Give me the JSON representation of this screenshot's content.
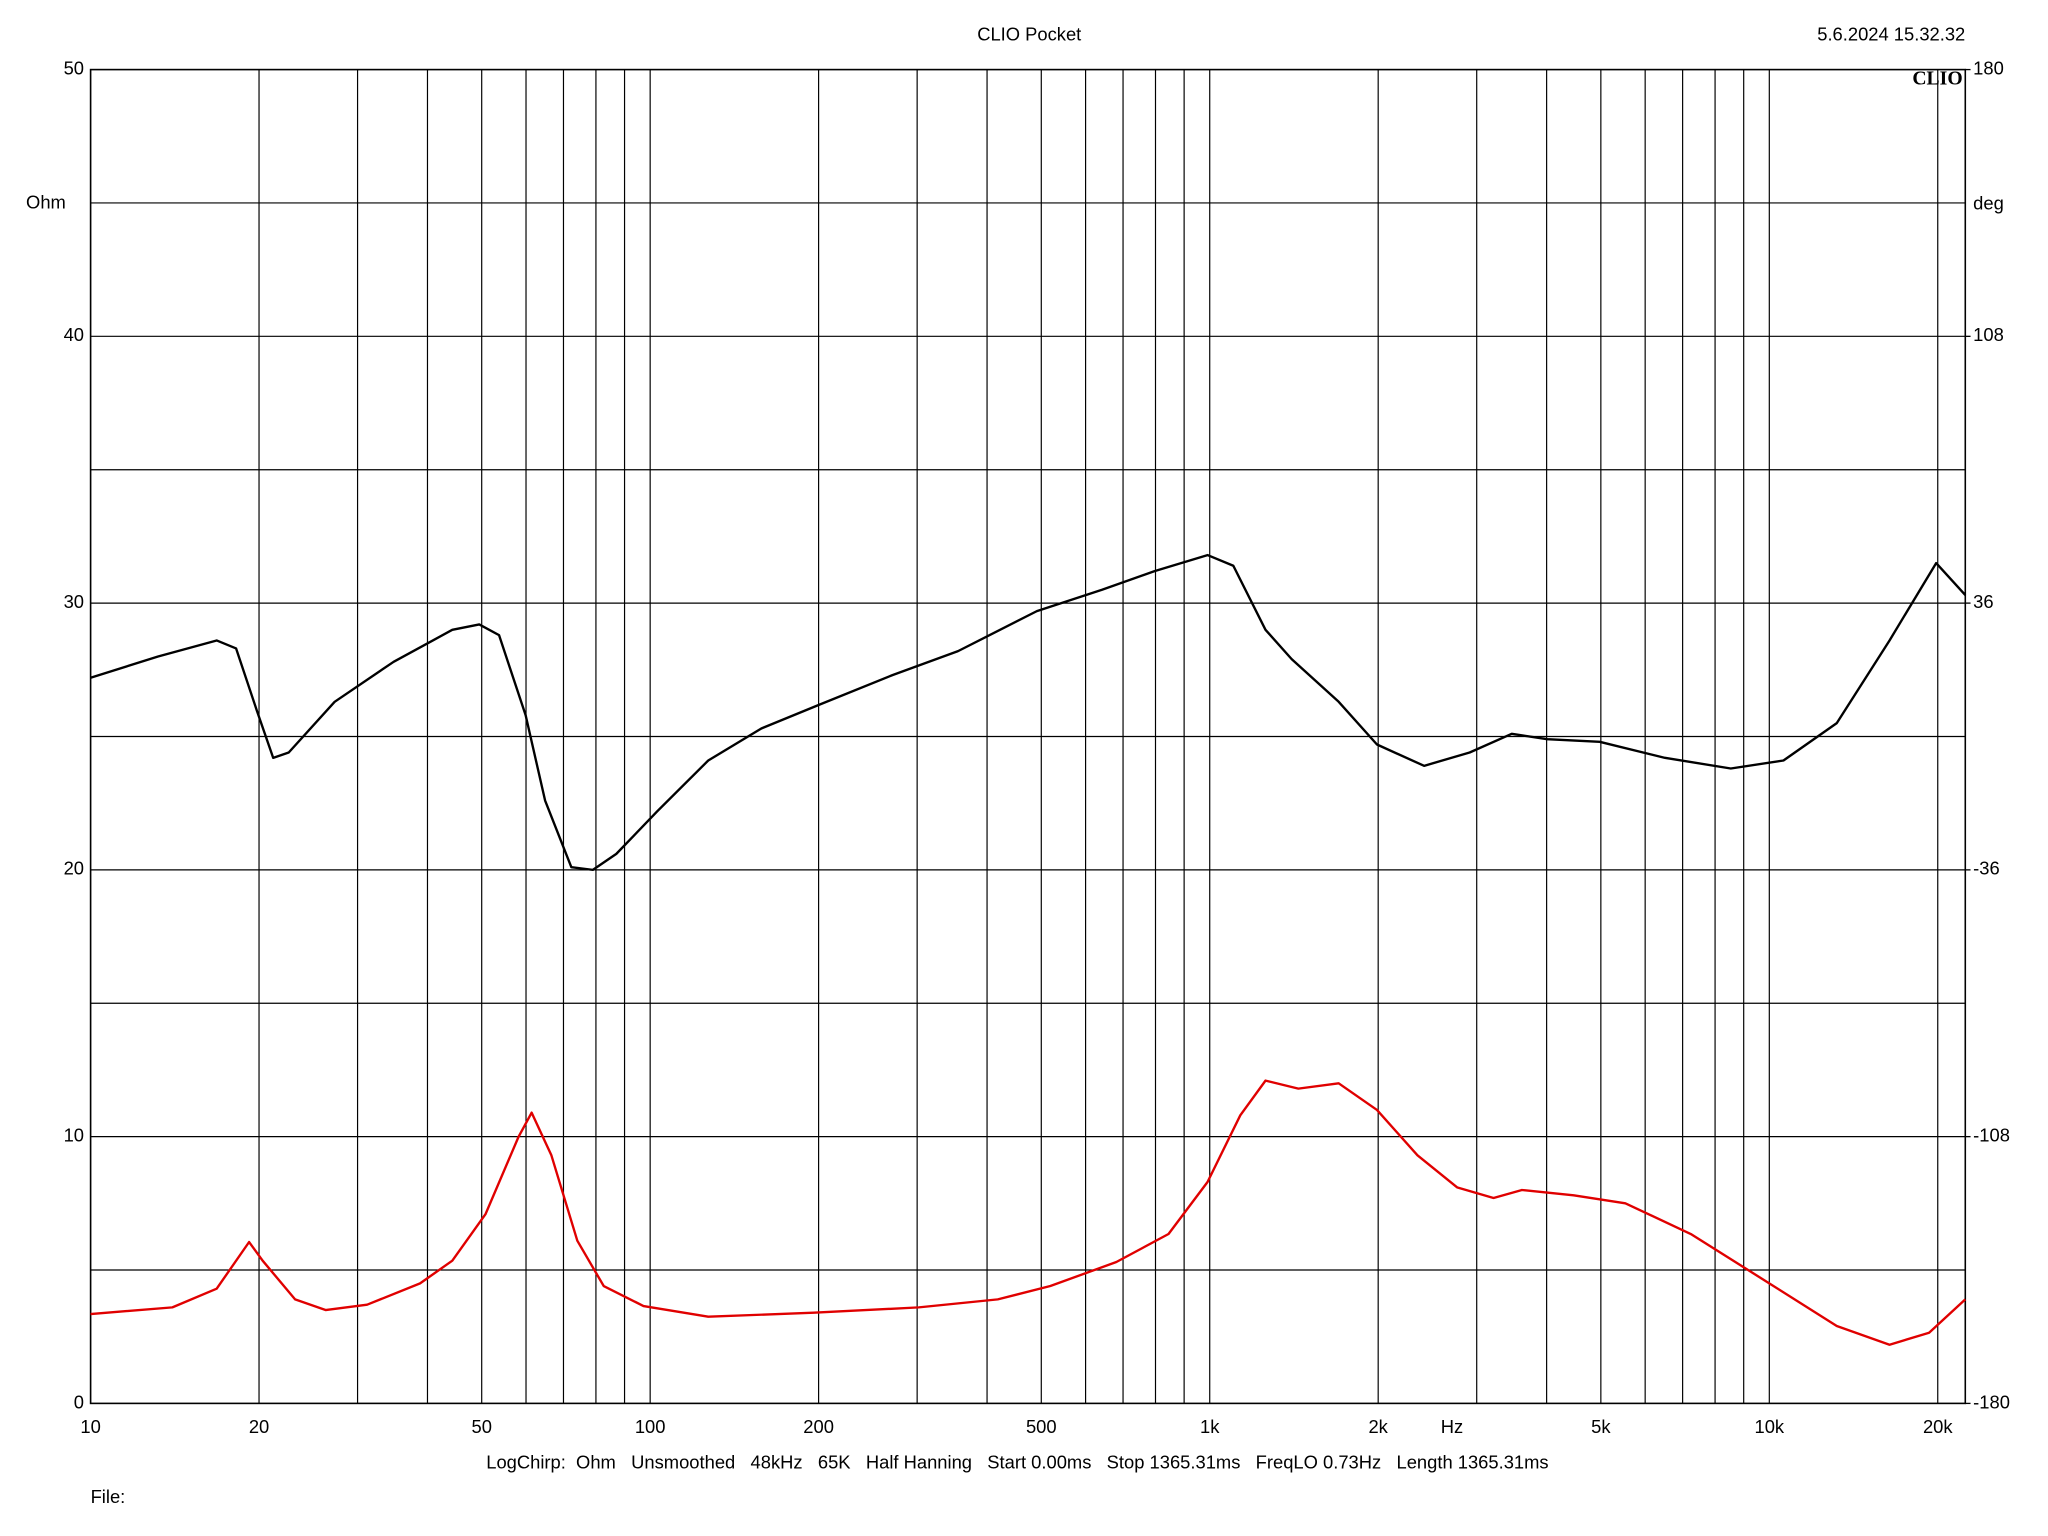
{
  "chart_data": {
    "type": "line",
    "title": "CLIO Pocket",
    "timestamp": "5.6.2024 15.32.32",
    "logo": "CLIO",
    "y_label": "Ohm",
    "y2_label": "deg",
    "x_label": "Hz",
    "footer": "LogChirp:  Ohm   Unsmoothed   48kHz   65K   Half Hanning   Start 0.00ms   Stop 1365.31ms   FreqLO 0.73Hz   Length 1365.31ms",
    "file_label": "File:",
    "xlog": true,
    "xlim": [
      10,
      22400
    ],
    "xticks": [
      10,
      20,
      50,
      100,
      200,
      500,
      {
        "value": 1000,
        "label": "1k"
      },
      {
        "value": 2000,
        "label": "2k"
      },
      {
        "value": 5000,
        "label": "5k"
      },
      {
        "value": 10000,
        "label": "10k"
      },
      {
        "value": 20000,
        "label": "20k"
      }
    ],
    "xgrid": [
      30,
      40,
      60,
      70,
      80,
      90,
      300,
      400,
      600,
      700,
      800,
      900,
      3000,
      4000,
      6000,
      7000,
      8000,
      9000
    ],
    "ylim": [
      0,
      50
    ],
    "yticks": [
      0,
      10,
      20,
      30,
      40,
      50
    ],
    "ygrid": [
      5,
      15,
      25,
      35,
      45
    ],
    "y2lim": [
      -180,
      180
    ],
    "y2ticks": [
      -180,
      -108,
      -36,
      36,
      108,
      180
    ],
    "grid": true,
    "series": [
      {
        "color": "#000000",
        "x": [
          10,
          13.2,
          16.8,
          18.2,
          19.8,
          21.2,
          22.6,
          27.3,
          34.8,
          40.9,
          44.3,
          49.5,
          53.7,
          59.9,
          64.9,
          72.3,
          79,
          87,
          103,
          127,
          158,
          201,
          271,
          355,
          491,
          642,
          797,
          991,
          1102,
          1258,
          1401,
          1700,
          1990,
          2416,
          2914,
          3465,
          4011,
          4976,
          6509,
          8535,
          10600,
          13200,
          16400,
          19870,
          22400
        ],
        "values": [
          27.2,
          28.0,
          28.6,
          28.3,
          26.0,
          24.2,
          24.4,
          26.3,
          27.8,
          28.6,
          29.0,
          29.2,
          28.8,
          25.8,
          22.6,
          20.1,
          20.0,
          20.6,
          22.2,
          24.1,
          25.3,
          26.2,
          27.3,
          28.2,
          29.7,
          30.5,
          31.2,
          31.8,
          31.4,
          29.0,
          27.9,
          26.3,
          24.7,
          23.9,
          24.4,
          25.1,
          24.9,
          24.8,
          24.2,
          23.8,
          24.1,
          25.5,
          28.6,
          31.5,
          30.3
        ]
      },
      {
        "color": "#e00000",
        "x": [
          10,
          14,
          16.8,
          19.2,
          20.3,
          23.2,
          26.3,
          31.2,
          38.8,
          44.3,
          50.8,
          58.2,
          61.4,
          66.6,
          74.1,
          82.6,
          97.3,
          127,
          196,
          302,
          418,
          519,
          681,
          844,
          991,
          1134,
          1258,
          1440,
          1700,
          1990,
          2351,
          2767,
          3215,
          3614,
          4470,
          5530,
          7240,
          9490,
          13200,
          16400,
          19300,
          22400
        ],
        "values": [
          3.35,
          3.6,
          4.3,
          6.05,
          5.35,
          3.9,
          3.5,
          3.7,
          4.5,
          5.35,
          7.1,
          10.0,
          10.9,
          9.3,
          6.1,
          4.4,
          3.65,
          3.25,
          3.4,
          3.6,
          3.9,
          4.4,
          5.3,
          6.35,
          8.3,
          10.8,
          12.1,
          11.8,
          12.0,
          11.0,
          9.3,
          8.1,
          7.7,
          8.0,
          7.8,
          7.5,
          6.35,
          4.8,
          2.9,
          2.2,
          2.65,
          3.9
        ]
      }
    ]
  }
}
